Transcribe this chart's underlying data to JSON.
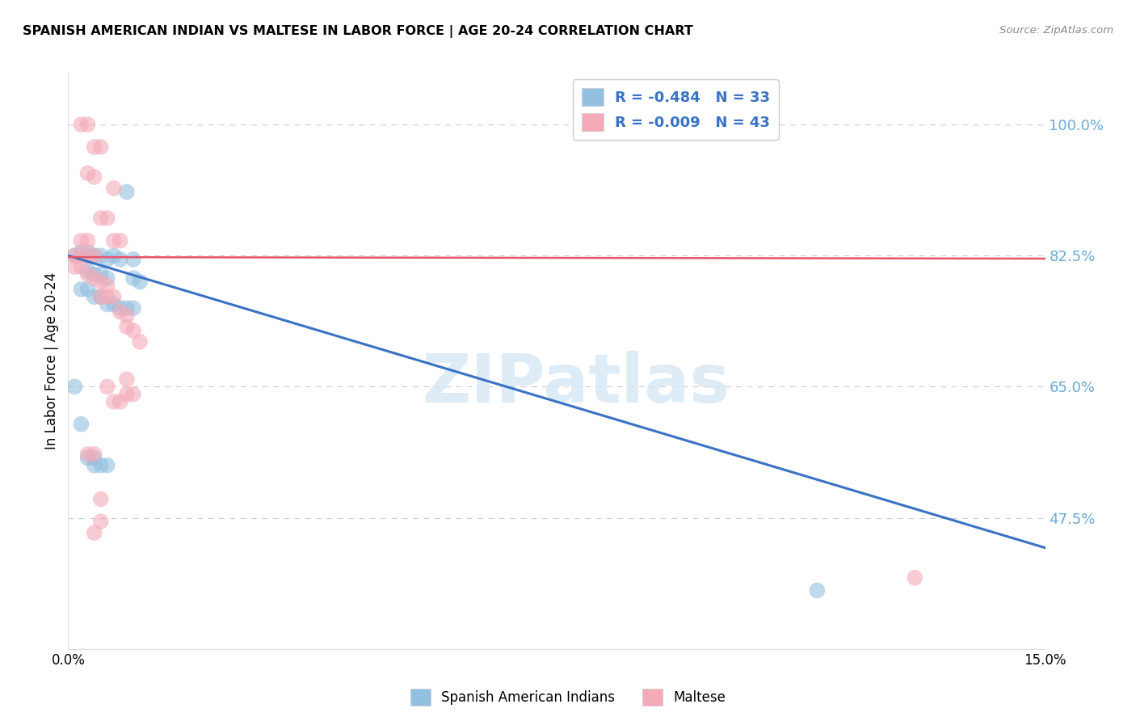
{
  "title": "SPANISH AMERICAN INDIAN VS MALTESE IN LABOR FORCE | AGE 20-24 CORRELATION CHART",
  "source": "Source: ZipAtlas.com",
  "ylabel": "In Labor Force | Age 20-24",
  "y_ticks": [
    0.475,
    0.65,
    0.825,
    1.0
  ],
  "y_tick_labels": [
    "47.5%",
    "65.0%",
    "82.5%",
    "100.0%"
  ],
  "x_range": [
    0.0,
    0.15
  ],
  "y_range": [
    0.3,
    1.07
  ],
  "legend_entries": [
    {
      "label": "R = -0.484   N = 33"
    },
    {
      "label": "R = -0.009   N = 43"
    }
  ],
  "blue_scatter": [
    [
      0.001,
      0.825
    ],
    [
      0.002,
      0.83
    ],
    [
      0.003,
      0.83
    ],
    [
      0.003,
      0.805
    ],
    [
      0.004,
      0.825
    ],
    [
      0.004,
      0.8
    ],
    [
      0.005,
      0.825
    ],
    [
      0.005,
      0.8
    ],
    [
      0.006,
      0.82
    ],
    [
      0.006,
      0.795
    ],
    [
      0.007,
      0.825
    ],
    [
      0.008,
      0.82
    ],
    [
      0.009,
      0.91
    ],
    [
      0.01,
      0.82
    ],
    [
      0.01,
      0.795
    ],
    [
      0.011,
      0.79
    ],
    [
      0.002,
      0.78
    ],
    [
      0.003,
      0.78
    ],
    [
      0.004,
      0.77
    ],
    [
      0.005,
      0.77
    ],
    [
      0.006,
      0.76
    ],
    [
      0.007,
      0.76
    ],
    [
      0.008,
      0.755
    ],
    [
      0.009,
      0.755
    ],
    [
      0.01,
      0.755
    ],
    [
      0.001,
      0.65
    ],
    [
      0.002,
      0.6
    ],
    [
      0.003,
      0.555
    ],
    [
      0.004,
      0.555
    ],
    [
      0.004,
      0.545
    ],
    [
      0.005,
      0.545
    ],
    [
      0.006,
      0.545
    ],
    [
      0.115,
      0.378
    ]
  ],
  "pink_scatter": [
    [
      0.002,
      1.0
    ],
    [
      0.003,
      1.0
    ],
    [
      0.004,
      0.97
    ],
    [
      0.005,
      0.97
    ],
    [
      0.003,
      0.935
    ],
    [
      0.004,
      0.93
    ],
    [
      0.007,
      0.915
    ],
    [
      0.005,
      0.875
    ],
    [
      0.006,
      0.875
    ],
    [
      0.002,
      0.845
    ],
    [
      0.003,
      0.845
    ],
    [
      0.007,
      0.845
    ],
    [
      0.008,
      0.845
    ],
    [
      0.001,
      0.825
    ],
    [
      0.002,
      0.825
    ],
    [
      0.003,
      0.825
    ],
    [
      0.004,
      0.825
    ],
    [
      0.001,
      0.81
    ],
    [
      0.002,
      0.81
    ],
    [
      0.003,
      0.8
    ],
    [
      0.004,
      0.795
    ],
    [
      0.005,
      0.79
    ],
    [
      0.006,
      0.785
    ],
    [
      0.005,
      0.77
    ],
    [
      0.006,
      0.77
    ],
    [
      0.007,
      0.77
    ],
    [
      0.008,
      0.75
    ],
    [
      0.009,
      0.745
    ],
    [
      0.009,
      0.73
    ],
    [
      0.01,
      0.725
    ],
    [
      0.011,
      0.71
    ],
    [
      0.003,
      0.56
    ],
    [
      0.004,
      0.56
    ],
    [
      0.005,
      0.5
    ],
    [
      0.005,
      0.47
    ],
    [
      0.004,
      0.455
    ],
    [
      0.006,
      0.65
    ],
    [
      0.007,
      0.63
    ],
    [
      0.008,
      0.63
    ],
    [
      0.009,
      0.66
    ],
    [
      0.009,
      0.64
    ],
    [
      0.01,
      0.64
    ],
    [
      0.13,
      0.395
    ]
  ],
  "blue_line_x": [
    0.0,
    0.15
  ],
  "blue_line_y": [
    0.825,
    0.435
  ],
  "pink_line_x": [
    0.0,
    0.15
  ],
  "pink_line_y": [
    0.823,
    0.821
  ],
  "blue_color": "#93bfe0",
  "pink_color": "#f4aab8",
  "blue_line_color": "#3a72c4",
  "pink_line_color": "#e8546a",
  "blue_tick_color": "#6aaad4",
  "watermark_text": "ZIPatlas",
  "background_color": "#ffffff",
  "grid_color": "#cccccc",
  "bottom_legend": [
    {
      "label": "Spanish American Indians",
      "color": "#93bfe0"
    },
    {
      "label": "Maltese",
      "color": "#f4aab8"
    }
  ]
}
